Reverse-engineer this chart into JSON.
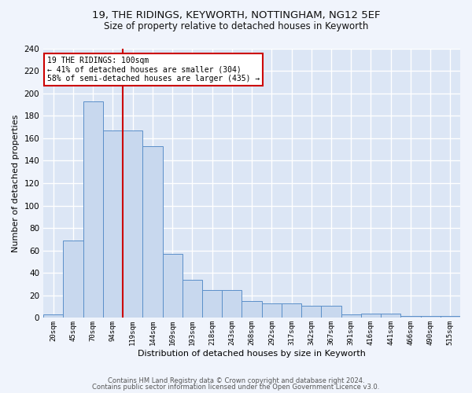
{
  "title1": "19, THE RIDINGS, KEYWORTH, NOTTINGHAM, NG12 5EF",
  "title2": "Size of property relative to detached houses in Keyworth",
  "xlabel": "Distribution of detached houses by size in Keyworth",
  "ylabel": "Number of detached properties",
  "bar_labels": [
    "20sqm",
    "45sqm",
    "70sqm",
    "94sqm",
    "119sqm",
    "144sqm",
    "169sqm",
    "193sqm",
    "218sqm",
    "243sqm",
    "268sqm",
    "292sqm",
    "317sqm",
    "342sqm",
    "367sqm",
    "391sqm",
    "416sqm",
    "441sqm",
    "466sqm",
    "490sqm",
    "515sqm"
  ],
  "bar_values": [
    3,
    69,
    193,
    167,
    167,
    153,
    57,
    34,
    25,
    25,
    15,
    13,
    13,
    11,
    11,
    3,
    4,
    4,
    2,
    2,
    2
  ],
  "bar_color": "#c8d8ee",
  "bar_edgecolor": "#5b8fc9",
  "property_line_x": 3.5,
  "property_line_label": "19 THE RIDINGS: 100sqm",
  "annotation_line1": "← 41% of detached houses are smaller (304)",
  "annotation_line2": "58% of semi-detached houses are larger (435) →",
  "annotation_box_color": "#ffffff",
  "annotation_box_edgecolor": "#cc0000",
  "vline_color": "#cc0000",
  "ylim": [
    0,
    240
  ],
  "yticks": [
    0,
    20,
    40,
    60,
    80,
    100,
    120,
    140,
    160,
    180,
    200,
    220,
    240
  ],
  "background_color": "#dce6f5",
  "grid_color": "#ffffff",
  "fig_background": "#f0f4fc",
  "footer1": "Contains HM Land Registry data © Crown copyright and database right 2024.",
  "footer2": "Contains public sector information licensed under the Open Government Licence v3.0."
}
